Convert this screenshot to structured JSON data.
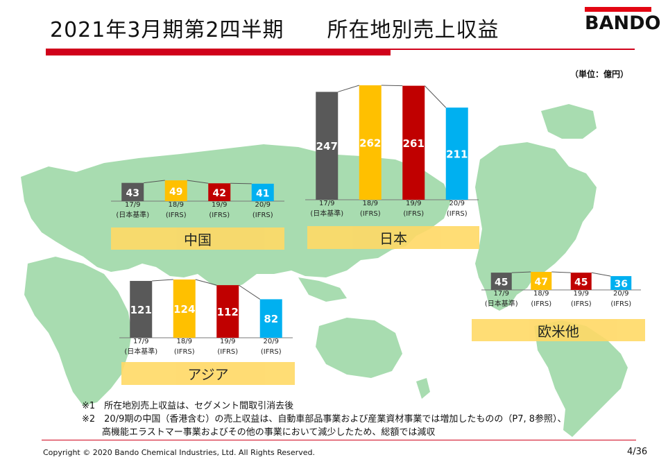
{
  "header": {
    "title": "2021年3月期第2四半期　　所在地別売上収益",
    "logo_text": "BANDO",
    "unit": "（単位：億円）"
  },
  "colors": {
    "accent_red": "#d0021b",
    "map_green": "#a8dcb0",
    "band_yellow": "#ffd966",
    "bar_gray": "#595959",
    "bar_yellow": "#ffc000",
    "bar_red": "#c00000",
    "bar_blue": "#00b0f0"
  },
  "chart_data": [
    {
      "type": "bar",
      "region": "中国",
      "categories": [
        "17/9\n(日本基準)",
        "18/9\n(IFRS)",
        "19/9\n(IFRS)",
        "20/9\n(IFRS)"
      ],
      "values": [
        43,
        49,
        42,
        41
      ]
    },
    {
      "type": "bar",
      "region": "日本",
      "categories": [
        "17/9\n(日本基準)",
        "18/9\n(IFRS)",
        "19/9\n(IFRS)",
        "20/9\n(IFRS)"
      ],
      "values": [
        247,
        262,
        261,
        211
      ]
    },
    {
      "type": "bar",
      "region": "アジア",
      "categories": [
        "17/9\n(日本基準)",
        "18/9\n(IFRS)",
        "19/9\n(IFRS)",
        "20/9\n(IFRS)"
      ],
      "values": [
        121,
        124,
        112,
        82
      ]
    },
    {
      "type": "bar",
      "region": "欧米他",
      "categories": [
        "17/9\n(日本基準)",
        "18/9\n(IFRS)",
        "19/9\n(IFRS)",
        "20/9\n(IFRS)"
      ],
      "values": [
        45,
        47,
        45,
        36
      ]
    }
  ],
  "notes": [
    "※1　所在地別売上収益は、セグメント間取引消去後",
    "※2　20/9期の中国（香港含む）の売上収益は、自動車部品事業および産業資材事業では増加したものの（P7, 8参照）、",
    "高機能エラストマー事業およびその他の事業において減少したため、総額では減収"
  ],
  "footer": {
    "copyright": "Copyright © 2020 Bando Chemical Industries, Ltd. All Rights Reserved.",
    "page": "4/36"
  }
}
